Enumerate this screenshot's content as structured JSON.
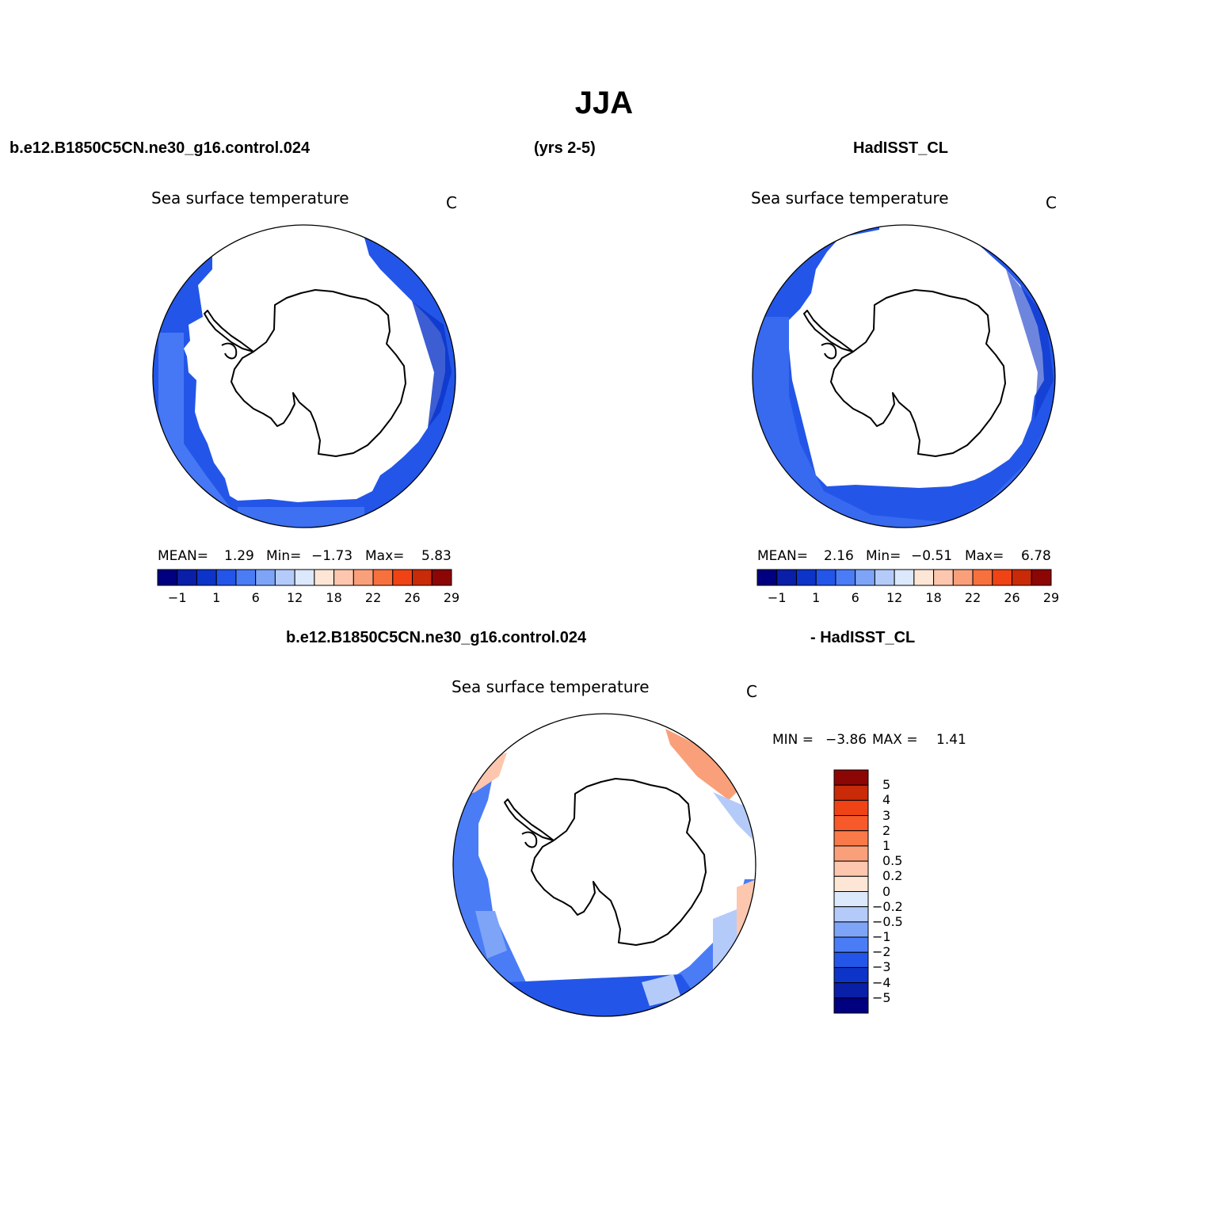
{
  "figure": {
    "title": "JJA",
    "header_left": "b.e12.B1850C5CN.ne30_g16.control.024",
    "header_center": "(yrs 2-5)",
    "header_right": "HadISST_CL",
    "diff_header_left": "b.e12.B1850C5CN.ne30_g16.control.024",
    "diff_header_right": "- HadISST_CL"
  },
  "panels": [
    {
      "id": "model",
      "title": "Sea surface temperature",
      "unit": "C",
      "mean_label": "MEAN=",
      "mean": "1.29",
      "min_label": "Min=",
      "min": "−1.73",
      "max_label": "Max=",
      "max": "5.83"
    },
    {
      "id": "obs",
      "title": "Sea surface temperature",
      "unit": "C",
      "mean_label": "MEAN=",
      "mean": "2.16",
      "min_label": "Min=",
      "min": "−0.51",
      "max_label": "Max=",
      "max": "6.78"
    },
    {
      "id": "diff",
      "title": "Sea surface temperature",
      "unit": "C",
      "min_label": "MIN =",
      "min": "−3.86",
      "max_label": "MAX =",
      "max": "1.41"
    }
  ],
  "abs_colorbar": {
    "colors": [
      "#000080",
      "#0a1fa8",
      "#0d34c8",
      "#2356e8",
      "#4a7cf6",
      "#7ea4f8",
      "#b4cbfa",
      "#dce8fb",
      "#fde6d6",
      "#fcc7ae",
      "#f9a07a",
      "#f7713f",
      "#ef4315",
      "#c92a08",
      "#8c0606"
    ],
    "labels": [
      "−1",
      "1",
      "6",
      "12",
      "18",
      "22",
      "26",
      "29"
    ]
  },
  "diff_colorbar": {
    "colors": [
      "#8c0606",
      "#c92a08",
      "#ef4315",
      "#f7592a",
      "#f97a48",
      "#f9a07a",
      "#fcc7ae",
      "#fde6d6",
      "#dce8fb",
      "#b4cbfa",
      "#7ea4f8",
      "#4a7cf6",
      "#2356e8",
      "#0d34c8",
      "#0a1fa8",
      "#000080"
    ],
    "labels": [
      "5",
      "4",
      "3",
      "2",
      "1",
      "0.5",
      "0.2",
      "0",
      "−0.2",
      "−0.5",
      "−1",
      "−2",
      "−3",
      "−4",
      "−5"
    ]
  },
  "map_colors": {
    "sst_dark": "#0d34c8",
    "sst_mid": "#2356e8",
    "sst_light": "#4a7cf6",
    "diff_main": "#4a7cf6",
    "diff_dark": "#2356e8",
    "diff_light": "#b4cbfa",
    "diff_warm": "#f9a07a",
    "diff_warm_light": "#fcc7ae",
    "land": "#ffffff",
    "coast": "#000000"
  }
}
